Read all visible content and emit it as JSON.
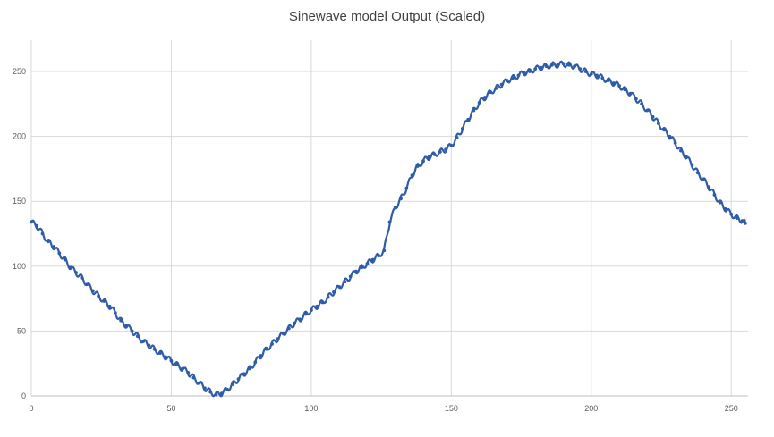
{
  "chart_data": {
    "type": "line",
    "title": "Sinewave model Output (Scaled)",
    "xlabel": "",
    "ylabel": "",
    "xlim": [
      0,
      256
    ],
    "ylim": [
      0,
      250
    ],
    "xticks": [
      0,
      50,
      100,
      150,
      200,
      250
    ],
    "yticks": [
      0,
      50,
      100,
      150,
      200,
      250
    ],
    "grid": "vertical and horizontal",
    "legend": "none",
    "line_color": "#2e5ca8",
    "series": [
      {
        "x": [
          0,
          2,
          4,
          6,
          8,
          10,
          12,
          14,
          16,
          18,
          20,
          22,
          24,
          26,
          28,
          30,
          32,
          34,
          36,
          38,
          40,
          42,
          44,
          46,
          48,
          50,
          52,
          54,
          56,
          58,
          60,
          62,
          64,
          66,
          68,
          70,
          72,
          74,
          76,
          78,
          80,
          82,
          84,
          86,
          88,
          90,
          92,
          94,
          96,
          98,
          100,
          102,
          104,
          106,
          108,
          110,
          112,
          114,
          116,
          118,
          120,
          122,
          124,
          126,
          128,
          130,
          132,
          134,
          136,
          138,
          140,
          142,
          144,
          146,
          148,
          150,
          152,
          154,
          156,
          158,
          160,
          162,
          164,
          166,
          168,
          170,
          172,
          174,
          176,
          178,
          180,
          182,
          184,
          186,
          188,
          190,
          192,
          194,
          196,
          198,
          200,
          202,
          204,
          206,
          208,
          210,
          212,
          214,
          216,
          218,
          220,
          222,
          224,
          226,
          228,
          230,
          232,
          234,
          236,
          238,
          240,
          242,
          244,
          246,
          248,
          250,
          252,
          254,
          255
        ],
        "y": [
          134,
          131,
          125,
          119,
          115,
          110,
          105,
          99,
          95,
          91,
          86,
          81,
          77,
          73,
          69,
          64,
          58,
          54,
          50,
          46,
          42,
          39,
          36,
          33,
          30,
          27,
          24,
          21,
          18,
          14,
          10,
          6,
          3,
          1,
          2,
          5,
          9,
          13,
          17,
          21,
          26,
          31,
          36,
          40,
          44,
          48,
          52,
          56,
          59,
          63,
          66,
          69,
          72,
          76,
          80,
          84,
          88,
          92,
          96,
          99,
          102,
          105,
          108,
          112,
          134,
          145,
          152,
          160,
          170,
          177,
          181,
          184,
          186,
          188,
          190,
          193,
          199,
          206,
          213,
          220,
          226,
          230,
          234,
          237,
          240,
          243,
          245,
          247,
          249,
          250,
          252,
          253,
          254,
          255,
          255,
          256,
          255,
          254,
          252,
          250,
          248,
          247,
          245,
          243,
          241,
          239,
          236,
          233,
          229,
          225,
          220,
          215,
          210,
          205,
          200,
          195,
          189,
          184,
          178,
          172,
          167,
          161,
          155,
          149,
          144,
          140,
          137,
          135,
          133
        ]
      }
    ]
  }
}
